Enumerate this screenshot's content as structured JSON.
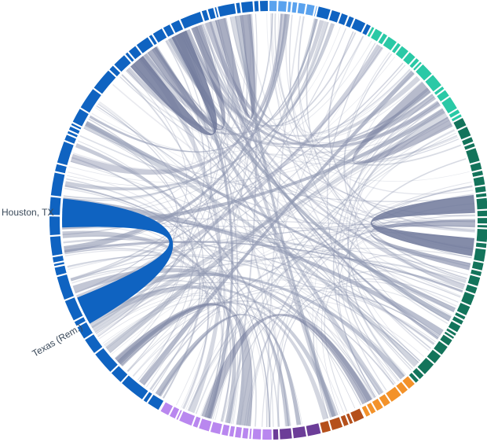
{
  "diagram": {
    "type": "chord",
    "labels": [
      {
        "id": "houston",
        "text": "Houston, TX"
      },
      {
        "id": "texas",
        "text": "Texas (Rem.)"
      }
    ],
    "colors": {
      "blue_dark": "#0f63c1",
      "blue_light": "#5aa2ee",
      "teal": "#2ac9a6",
      "green": "#13745b",
      "orange": "#f3922a",
      "brown": "#b5501b",
      "purple_dark": "#6c3d98",
      "purple": "#b987ef",
      "ribbon": "#8f97b1",
      "ribbon_dark": "#6f789a",
      "ribbon_highlight": "#0f63c1"
    }
  }
}
